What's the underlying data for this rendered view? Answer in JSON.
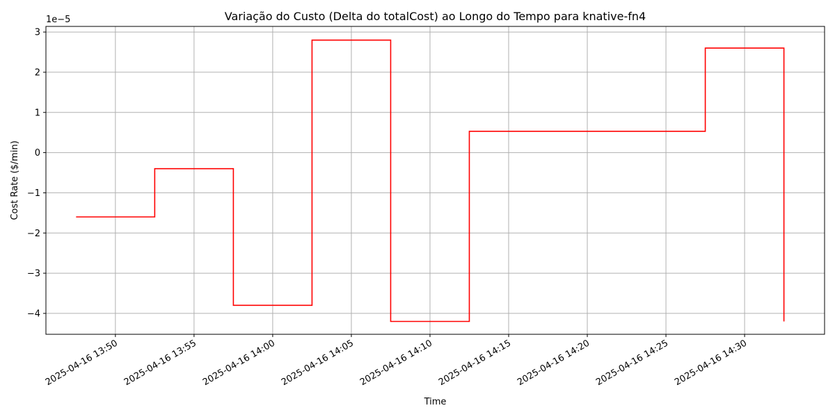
{
  "chart_data": {
    "type": "line",
    "drawstyle": "steps-post",
    "title": "Variação do Custo (Delta do totalCost) ao Longo do Tempo para knative-fn4",
    "xlabel": "Time",
    "ylabel": "Cost Rate ($/min)",
    "y_offset_label": "1e−5",
    "y_scale": 1e-05,
    "grid": true,
    "line_color": "#ff0000",
    "xlim": [
      "2025-04-16 13:45:35",
      "2025-04-16 14:35:05"
    ],
    "ylim": [
      -4.52,
      3.14
    ],
    "x_ticks": [
      "13:50",
      "13:55",
      "14:00",
      "14:05",
      "14:10",
      "14:15",
      "14:20",
      "14:25",
      "14:30"
    ],
    "x_tick_labels": [
      "2025-04-16 13:50",
      "2025-04-16 13:55",
      "2025-04-16 14:00",
      "2025-04-16 14:05",
      "2025-04-16 14:10",
      "2025-04-16 14:15",
      "2025-04-16 14:20",
      "2025-04-16 14:25",
      "2025-04-16 14:30"
    ],
    "y_ticks": [
      -4,
      -3,
      -2,
      -1,
      0,
      1,
      2,
      3
    ],
    "y_tick_labels": [
      "−4",
      "−3",
      "−2",
      "−1",
      "0",
      "1",
      "2",
      "3"
    ],
    "series": [
      {
        "x": [
          "13:47:30",
          "13:52:30",
          "13:57:30",
          "14:02:30",
          "14:07:30",
          "14:12:30",
          "14:27:30",
          "14:32:30"
        ],
        "y": [
          -1.6,
          -0.4,
          -3.8,
          2.8,
          -4.2,
          0.53,
          2.6,
          -4.2
        ]
      }
    ]
  }
}
